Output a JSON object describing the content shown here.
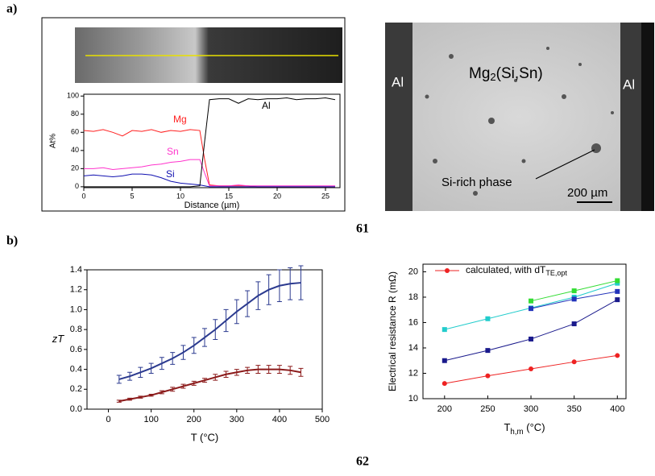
{
  "panels": [
    "a)",
    "b)"
  ],
  "figure_numbers": [
    "61",
    "62"
  ],
  "micrograph": {
    "al_labels": [
      "Al",
      "Al"
    ],
    "phase": [
      "Mg",
      "2",
      "(Si,Sn)"
    ],
    "annotation": "Si-rich phase",
    "scale_bar": "200 µm"
  },
  "chart_data": [
    {
      "type": "line",
      "ylabel": "At%",
      "xlabel": "Distance (µm)",
      "x": [
        0,
        1,
        2,
        3,
        4,
        5,
        6,
        7,
        8,
        9,
        10,
        11,
        12,
        12.5,
        13,
        14,
        15,
        16,
        17,
        18,
        19,
        20,
        21,
        22,
        23,
        24,
        25,
        26
      ],
      "xlim": [
        0,
        26.5
      ],
      "ylim": [
        -1,
        102
      ],
      "xticks": [
        0,
        5,
        10,
        15,
        20,
        25
      ],
      "yticks": [
        0,
        20,
        40,
        60,
        80,
        100
      ],
      "series": [
        {
          "name": "Mg",
          "color": "#ff2020",
          "values": [
            62,
            61,
            63,
            60,
            56,
            62,
            61,
            63,
            60,
            62,
            61,
            63,
            62,
            30,
            2,
            1,
            1,
            1,
            1,
            0,
            0,
            0,
            0,
            0,
            0,
            0,
            0,
            0
          ]
        },
        {
          "name": "Sn",
          "color": "#ff33cc",
          "values": [
            20,
            20,
            21,
            19,
            20,
            21,
            22,
            24,
            25,
            27,
            28,
            30,
            30,
            15,
            1,
            1,
            1,
            2,
            1,
            1,
            1,
            1,
            1,
            1,
            1,
            1,
            1,
            1
          ]
        },
        {
          "name": "Si",
          "color": "#1010b0",
          "values": [
            12,
            13,
            12,
            11,
            12,
            14,
            14,
            13,
            10,
            6,
            4,
            3,
            2,
            1,
            0,
            0,
            0,
            0,
            0,
            0,
            0,
            0,
            0,
            0,
            0,
            0,
            0,
            0
          ]
        },
        {
          "name": "Al",
          "color": "#000000",
          "values": [
            0,
            0,
            0,
            0,
            0,
            0,
            0,
            0,
            0,
            0,
            0,
            0,
            1,
            50,
            96,
            97,
            97,
            92,
            97,
            96,
            97,
            97,
            98,
            96,
            97,
            97,
            98,
            96
          ]
        }
      ]
    },
    {
      "type": "line",
      "ylabel": "zT",
      "xlabel": "T (°C)",
      "x": [
        25,
        50,
        75,
        100,
        125,
        150,
        175,
        200,
        225,
        250,
        275,
        300,
        325,
        350,
        375,
        400,
        425,
        450
      ],
      "xlim": [
        -50,
        500
      ],
      "ylim": [
        0,
        1.4
      ],
      "xticks": [
        0,
        100,
        200,
        300,
        400,
        500
      ],
      "yticks": [
        {
          "value": 0,
          "label": "0.0"
        },
        0.2,
        0.4,
        0.6,
        0.8,
        {
          "value": 1,
          "label": "1.0"
        },
        1.2,
        1.4
      ],
      "series": [
        {
          "color": "#2b3a8f",
          "values": [
            0.3,
            0.33,
            0.37,
            0.41,
            0.46,
            0.51,
            0.57,
            0.64,
            0.72,
            0.8,
            0.89,
            0.98,
            1.06,
            1.14,
            1.2,
            1.24,
            1.26,
            1.27
          ],
          "errors": [
            0.04,
            0.04,
            0.05,
            0.05,
            0.06,
            0.06,
            0.07,
            0.08,
            0.09,
            0.1,
            0.11,
            0.12,
            0.13,
            0.14,
            0.15,
            0.16,
            0.16,
            0.17
          ]
        },
        {
          "color": "#8b1a1a",
          "values": [
            0.08,
            0.1,
            0.12,
            0.14,
            0.17,
            0.2,
            0.23,
            0.26,
            0.29,
            0.32,
            0.35,
            0.37,
            0.39,
            0.4,
            0.4,
            0.4,
            0.39,
            0.37
          ],
          "errors": [
            0.01,
            0.01,
            0.01,
            0.01,
            0.015,
            0.02,
            0.02,
            0.02,
            0.02,
            0.03,
            0.03,
            0.03,
            0.03,
            0.04,
            0.04,
            0.04,
            0.04,
            0.04
          ]
        }
      ]
    },
    {
      "type": "line",
      "ylabel": "Electrical resistance R (mΩ)",
      "xlabel": [
        "T",
        "h,m",
        " (°C)"
      ],
      "x": [
        200,
        250,
        300,
        350,
        400
      ],
      "xlim": [
        175,
        410
      ],
      "ylim": [
        10,
        20.6
      ],
      "xticks": [
        200,
        250,
        300,
        350,
        400
      ],
      "yticks": [
        10,
        12,
        14,
        16,
        18,
        20
      ],
      "series": [
        {
          "name": [
            "calculated, with dT",
            "TE,opt"
          ],
          "color": "#ee2222",
          "marker": "circle",
          "values": [
            11.2,
            11.8,
            12.35,
            12.9,
            13.4
          ]
        },
        {
          "color": "#1a1a8c",
          "marker": "square",
          "values": [
            13.0,
            13.8,
            14.7,
            15.9,
            17.8
          ]
        },
        {
          "color": "#22cccc",
          "marker": "square",
          "values": [
            15.45,
            16.3,
            17.15,
            18.0,
            19.1
          ]
        },
        {
          "color": "#33dd33",
          "marker": "square",
          "values": [
            null,
            null,
            17.7,
            18.5,
            19.3
          ]
        },
        {
          "color": "#2233bb",
          "marker": "square",
          "values": [
            null,
            null,
            17.1,
            17.85,
            18.45
          ]
        }
      ]
    }
  ]
}
